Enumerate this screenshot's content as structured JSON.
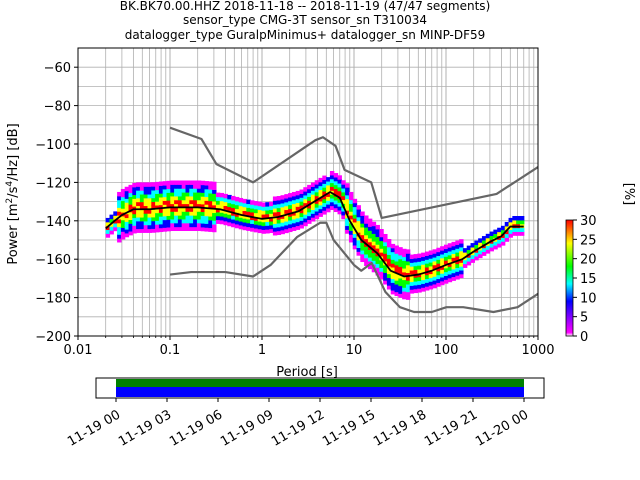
{
  "figure": {
    "title_lines": [
      "BK.BK70.00.HHZ   2018-11-18 -- 2018-11-19  (47/47 segments)",
      "sensor_type CMG-3T sensor_sn T310034",
      "datalogger_type GuralpMinimus+ datalogger_sn MINP-DF59"
    ]
  },
  "chart_data": [
    {
      "type": "heatmap",
      "title": "BK.BK70.00.HHZ   2018-11-18 -- 2018-11-19  (47/47 segments)",
      "xlabel": "Period [s]",
      "ylabel": "Power [m²/s⁴/Hz] [dB]",
      "xscale": "log",
      "xlim": [
        0.01,
        1000
      ],
      "ylim": [
        -200,
        -50
      ],
      "x_ticks": [
        0.01,
        0.1,
        1,
        10,
        100,
        1000
      ],
      "x_tick_labels": [
        "0.01",
        "0.1",
        "1",
        "10",
        "100",
        "1000"
      ],
      "y_ticks": [
        -200,
        -180,
        -160,
        -140,
        -120,
        -100,
        -80,
        -60
      ],
      "y_tick_labels": [
        "−200",
        "−180",
        "−160",
        "−140",
        "−120",
        "−100",
        "−80",
        "−60"
      ],
      "grid": true,
      "colorbar": {
        "label": "[%]",
        "range": [
          0,
          30
        ],
        "ticks": [
          0,
          5,
          10,
          15,
          20,
          25,
          30
        ],
        "tick_labels": [
          "0",
          "5",
          "10",
          "15",
          "20",
          "25",
          "30"
        ]
      },
      "series": [
        {
          "role": "nhnm",
          "color": "#666666",
          "x": [
            0.1,
            0.22,
            0.32,
            0.8,
            3.8,
            4.6,
            6.3,
            7.9,
            15.4,
            20,
            354.8,
            1000
          ],
          "y": [
            -91.5,
            -97.4,
            -110.5,
            -120,
            -98,
            -96.5,
            -101,
            -113.5,
            -120,
            -138.5,
            -126,
            -112
          ]
        },
        {
          "role": "nlnm",
          "color": "#666666",
          "x": [
            0.1,
            0.17,
            0.4,
            0.8,
            1.24,
            2.4,
            4.3,
            5,
            6,
            10,
            12,
            15.6,
            21.9,
            31.6,
            45,
            70,
            101,
            154,
            328,
            600,
            1000
          ],
          "y": [
            -168,
            -166.7,
            -166.7,
            -169,
            -163,
            -148.5,
            -141,
            -141,
            -150,
            -163,
            -166,
            -162,
            -177,
            -185,
            -187.5,
            -187.5,
            -185,
            -185,
            -187.5,
            -185,
            -178
          ]
        },
        {
          "role": "mode",
          "color": "#000000",
          "x": [
            0.02,
            0.025,
            0.03,
            0.04,
            0.06,
            0.1,
            0.2,
            0.35,
            0.6,
            1,
            1.5,
            2.5,
            4,
            5.5,
            7,
            9,
            12,
            18,
            25,
            35,
            50,
            70,
            100,
            150,
            200,
            300,
            400,
            500,
            700
          ],
          "y": [
            -144,
            -140,
            -137,
            -134,
            -134,
            -133,
            -133,
            -134,
            -137,
            -139,
            -138,
            -135,
            -129,
            -125,
            -128,
            -140,
            -150,
            -157,
            -166,
            -169,
            -168,
            -166,
            -163,
            -160,
            -156,
            -151,
            -148,
            -143,
            -143
          ]
        }
      ],
      "density": {
        "color_stops": [
          "#ffffff",
          "#ff00ff",
          "#0000ff",
          "#00ffff",
          "#00ff00",
          "#ffff00",
          "#ff0000"
        ]
      }
    },
    {
      "type": "bar",
      "role": "data-coverage",
      "x_tick_labels": [
        "11-19 00",
        "11-19 03",
        "11-19 06",
        "11-19 09",
        "11-19 12",
        "11-19 15",
        "11-19 18",
        "11-19 21",
        "11-20 00"
      ],
      "coverage": {
        "start_fraction": 0.0,
        "end_fraction": 1.0
      },
      "colors": {
        "top": "#008000",
        "bottom": "#0000ff"
      }
    }
  ]
}
